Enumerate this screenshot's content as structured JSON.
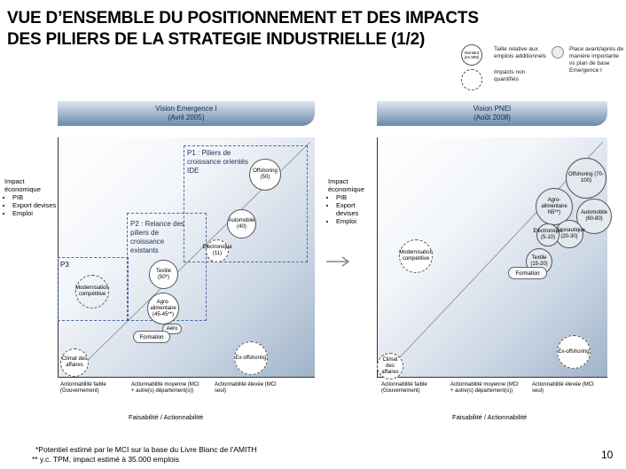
{
  "title_line1": "VUE D’ENSEMBLE DU POSITIONNEMENT ET DES IMPACTS",
  "title_line2": "DES PILIERS DE LA STRATEGIE INDUSTRIELLE (1/2)",
  "legend": {
    "circle_label": "Montant (en MM)",
    "taille_text": "Taille relative aux emplois additionnels",
    "impacts_text": "Impacts non quantifiés",
    "place_text": "Place avant/après de manière importante vs plan de base Emergence I"
  },
  "left": {
    "banner_line1": "Vision Emergence I",
    "banner_line2": "(Avril 2005)",
    "impact_title": "Impact économique",
    "impact_items": [
      "PIB",
      "Export devises",
      "Emploi"
    ],
    "p1": "P1 : Piliers de croissance orientés IDE",
    "p2": "P2 : Relance des piliers de croissance existants",
    "p3": "P3",
    "offshoring": "Offshoring (50)",
    "automobile": "Automobile (40)",
    "electronique": "Electronique (11)",
    "textile": "Textile (50*)",
    "modernisation": "Modernisation compétitive",
    "agro": "Agro-alimentaire (45-45**)",
    "aero": "Aéro",
    "formation": "Formation",
    "ex_offshoring": "Ex-offshoring",
    "climat": "Climat des affaires",
    "x_low": "Actionnabilité faible (Gouvernement)",
    "x_mid": "Actionnabilité moyenne (MCI + autre(s) département(s))",
    "x_high": "Actionnabilité élevée (MCI seul)",
    "x_axis": "Faisabilité / Actionnabilité"
  },
  "right": {
    "banner_line1": "Vision PNEI",
    "banner_line2": "(Août 2008)",
    "impact_title": "Impact économique",
    "impact_items": [
      "PIB",
      "Export devises",
      "Emploi"
    ],
    "offshoring": "Offshoring (70-100)",
    "agro": "Agro-alimentaire N5**)",
    "automobile": "Automobile (60-80)",
    "aero": "Aéronautique (20-30)",
    "electronique": "Electronique (5-10)",
    "textile": "Textile (15-20)",
    "modernisation": "Modernisation compétitive",
    "formation": "Formation",
    "ex_offshoring": "Ex-offshoring",
    "climat": "Climat des affaires",
    "x_low": "Actionnabilité faible (Gouvernement)",
    "x_mid": "Actionnabilité moyenne (MCI + autre(s) département(s))",
    "x_high": "Actionnabilité élevée (MCI seul)",
    "x_axis": "Faisabilité / Actionnabilité"
  },
  "footnote1": "*Potentiel estimé par le MCI sur la base du Livre Blanc de l'AMITH",
  "footnote2": "** y.c. TPM, impact estimé à 35.000 emplois",
  "page_number": "10"
}
